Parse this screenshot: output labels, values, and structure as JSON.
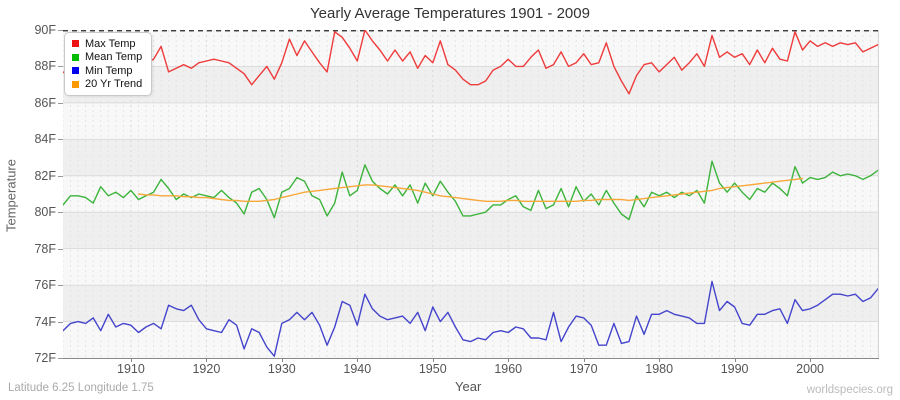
{
  "title": "Yearly Average Temperatures 1901 - 2009",
  "y_axis": {
    "label": "Temperature",
    "tick_labels": [
      "90F",
      "88F",
      "86F",
      "84F",
      "82F",
      "80F",
      "78F",
      "76F",
      "74F",
      "72F"
    ],
    "tick_values": [
      90,
      88,
      86,
      84,
      82,
      80,
      78,
      76,
      74,
      72
    ]
  },
  "x_axis": {
    "label": "Year",
    "tick_labels": [
      "1910",
      "1920",
      "1930",
      "1940",
      "1950",
      "1960",
      "1970",
      "1980",
      "1990",
      "2000"
    ],
    "tick_values": [
      1910,
      1920,
      1930,
      1940,
      1950,
      1960,
      1970,
      1980,
      1990,
      2000
    ]
  },
  "legend": [
    {
      "label": "Max Temp",
      "color": "#ee1111"
    },
    {
      "label": "Mean Temp",
      "color": "#00bb00"
    },
    {
      "label": "Min Temp",
      "color": "#0000ee"
    },
    {
      "label": "20 Yr Trend",
      "color": "#ff9900"
    }
  ],
  "footer": {
    "left": "Latitude 6.25 Longitude 1.75",
    "right": "worldspecies.org"
  },
  "chart_data": {
    "type": "line",
    "x_start": 1901,
    "x_end": 2009,
    "ylim": [
      72,
      90
    ],
    "unit": "F",
    "grid": {
      "vertical_dashed_every_year": true,
      "horizontal_every_2F": true,
      "stripe_bands_gray_top_values": [
        88,
        84,
        80,
        76
      ],
      "reference_line": {
        "value": 90,
        "style": "dashed",
        "color": "#222222"
      }
    },
    "legend_position": "top-left",
    "series": [
      {
        "name": "Max Temp",
        "color": "#ee3b3b",
        "values": [
          87.7,
          87.4,
          87.6,
          87.3,
          87.5,
          87.9,
          88.2,
          88.0,
          88.2,
          88.1,
          88.3,
          88.2,
          88.4,
          89.1,
          87.7,
          87.9,
          88.1,
          87.9,
          88.2,
          88.3,
          88.4,
          88.3,
          88.2,
          87.9,
          87.6,
          87.0,
          87.5,
          88.0,
          87.3,
          88.2,
          89.5,
          88.6,
          89.4,
          88.8,
          88.2,
          87.7,
          89.9,
          89.6,
          89.0,
          88.3,
          90.0,
          89.4,
          88.9,
          88.3,
          88.9,
          88.3,
          88.8,
          87.9,
          88.6,
          88.2,
          89.4,
          88.1,
          87.8,
          87.3,
          87.0,
          87.0,
          87.2,
          87.8,
          88.0,
          88.4,
          88.0,
          88.0,
          88.5,
          88.9,
          87.9,
          88.1,
          88.8,
          88.0,
          88.2,
          88.7,
          88.1,
          88.2,
          89.3,
          88.0,
          87.2,
          86.5,
          87.5,
          88.1,
          88.2,
          87.7,
          88.1,
          88.5,
          87.8,
          88.2,
          88.7,
          88.0,
          89.7,
          88.5,
          88.8,
          88.5,
          88.7,
          88.1,
          88.9,
          88.2,
          89.0,
          88.4,
          88.3,
          89.9,
          88.9,
          89.4,
          89.1,
          89.3,
          89.1,
          89.3,
          89.2,
          89.3,
          88.8,
          89.0,
          89.2
        ]
      },
      {
        "name": "Mean Temp",
        "color": "#3cb43c",
        "values": [
          80.4,
          80.9,
          80.9,
          80.8,
          80.5,
          81.4,
          80.9,
          81.1,
          80.8,
          81.2,
          80.7,
          80.9,
          81.1,
          81.8,
          81.3,
          80.7,
          81.0,
          80.8,
          81.0,
          80.9,
          80.8,
          81.2,
          80.8,
          80.5,
          79.9,
          81.1,
          81.3,
          80.7,
          79.7,
          81.1,
          81.3,
          81.9,
          81.7,
          80.9,
          80.7,
          79.8,
          80.5,
          82.2,
          80.9,
          81.2,
          82.6,
          81.7,
          81.3,
          81.0,
          81.5,
          80.9,
          81.5,
          80.5,
          81.6,
          80.9,
          81.7,
          81.1,
          80.6,
          79.8,
          79.8,
          79.9,
          80.0,
          80.4,
          80.4,
          80.7,
          80.9,
          80.3,
          80.1,
          81.2,
          80.2,
          80.4,
          81.3,
          80.3,
          81.4,
          80.6,
          81.0,
          80.4,
          81.2,
          80.5,
          79.9,
          79.6,
          80.9,
          80.3,
          81.1,
          80.9,
          81.1,
          80.8,
          81.1,
          80.9,
          81.2,
          80.5,
          82.8,
          81.6,
          81.1,
          81.6,
          81.1,
          80.7,
          81.3,
          81.1,
          81.6,
          81.3,
          80.9,
          82.5,
          81.6,
          81.9,
          81.8,
          81.9,
          82.2,
          82.0,
          82.1,
          82.0,
          81.8,
          82.0,
          82.3
        ]
      },
      {
        "name": "Min Temp",
        "color": "#4444cc",
        "values": [
          73.5,
          73.9,
          74.0,
          73.9,
          74.2,
          73.5,
          74.4,
          73.7,
          73.9,
          73.8,
          73.4,
          73.7,
          73.9,
          73.6,
          74.9,
          74.7,
          74.6,
          74.9,
          74.1,
          73.6,
          73.5,
          73.4,
          74.1,
          73.8,
          72.5,
          73.6,
          73.4,
          72.6,
          72.1,
          73.9,
          74.1,
          74.5,
          74.1,
          74.5,
          73.8,
          72.7,
          73.7,
          75.1,
          74.9,
          73.8,
          75.5,
          74.7,
          74.3,
          74.1,
          74.2,
          74.3,
          73.9,
          74.5,
          73.5,
          74.8,
          74.0,
          74.5,
          73.7,
          73.0,
          72.9,
          73.1,
          73.0,
          73.4,
          73.5,
          73.4,
          73.7,
          73.6,
          73.1,
          73.1,
          73.0,
          74.5,
          72.9,
          73.7,
          74.3,
          74.2,
          73.8,
          72.7,
          72.7,
          73.9,
          72.8,
          72.9,
          74.3,
          73.3,
          74.4,
          74.4,
          74.6,
          74.4,
          74.3,
          74.2,
          73.9,
          73.9,
          76.2,
          74.6,
          75.1,
          74.8,
          73.9,
          73.8,
          74.4,
          74.4,
          74.6,
          74.7,
          73.9,
          75.2,
          74.6,
          74.7,
          74.9,
          75.2,
          75.5,
          75.5,
          75.4,
          75.5,
          75.1,
          75.3,
          75.8
        ]
      },
      {
        "name": "20 Yr Trend",
        "color": "#f7a83b",
        "values": [
          null,
          null,
          null,
          null,
          null,
          null,
          null,
          null,
          null,
          null,
          81.0,
          80.95,
          80.95,
          80.9,
          80.9,
          80.9,
          80.85,
          80.85,
          80.8,
          80.8,
          80.75,
          80.7,
          80.65,
          80.65,
          80.6,
          80.6,
          80.6,
          80.65,
          80.7,
          80.8,
          80.9,
          81.0,
          81.1,
          81.15,
          81.2,
          81.25,
          81.3,
          81.35,
          81.4,
          81.45,
          81.5,
          81.5,
          81.45,
          81.4,
          81.35,
          81.3,
          81.25,
          81.2,
          81.1,
          81.0,
          80.9,
          80.85,
          80.8,
          80.75,
          80.7,
          80.65,
          80.6,
          80.6,
          80.6,
          80.65,
          80.65,
          80.6,
          80.6,
          80.6,
          80.6,
          80.6,
          80.6,
          80.6,
          80.6,
          80.65,
          80.65,
          80.7,
          80.7,
          80.7,
          80.7,
          80.65,
          80.7,
          80.75,
          80.8,
          80.85,
          80.9,
          80.95,
          81.0,
          81.05,
          81.1,
          81.15,
          81.2,
          81.3,
          81.35,
          81.4,
          81.45,
          81.5,
          81.55,
          81.6,
          81.65,
          81.7,
          81.75,
          81.8,
          81.85,
          null,
          null,
          null,
          null,
          null,
          null,
          null,
          null,
          null,
          null
        ]
      }
    ]
  }
}
